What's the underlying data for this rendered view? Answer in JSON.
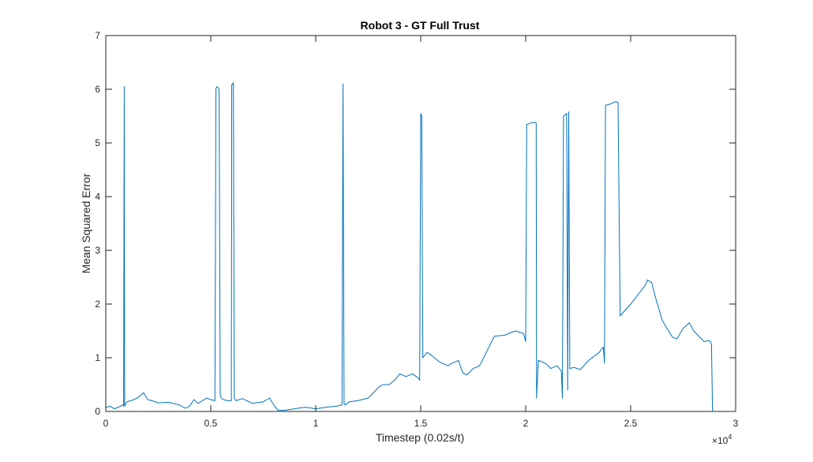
{
  "chart_data": {
    "type": "line",
    "title": "Robot 3 - GT Full Trust",
    "xlabel": "Timestep (0.02s/t)",
    "ylabel": "Mean Squared Error",
    "x_exponent_label": "×10",
    "x_exponent_power": "4",
    "xlim": [
      0,
      3
    ],
    "ylim": [
      0,
      7
    ],
    "xticks": [
      0,
      0.5,
      1,
      1.5,
      2,
      2.5,
      3
    ],
    "xtick_labels": [
      "0",
      "0.5",
      "1",
      "1.5",
      "2",
      "2.5",
      "3"
    ],
    "yticks": [
      0,
      1,
      2,
      3,
      4,
      5,
      6,
      7
    ],
    "ytick_labels": [
      "0",
      "1",
      "2",
      "3",
      "4",
      "5",
      "6",
      "7"
    ],
    "grid": false,
    "line_color": "#0072BD",
    "series": [
      {
        "x": [
          0,
          0.02,
          0.04,
          0.06,
          0.08,
          0.085,
          0.088,
          0.09,
          0.093,
          0.095,
          0.1,
          0.12,
          0.15,
          0.18,
          0.2,
          0.22,
          0.25,
          0.3,
          0.35,
          0.38,
          0.4,
          0.42,
          0.44,
          0.46,
          0.48,
          0.5,
          0.52,
          0.525,
          0.53,
          0.54,
          0.545,
          0.55,
          0.56,
          0.58,
          0.598,
          0.6,
          0.608,
          0.612,
          0.62,
          0.65,
          0.7,
          0.75,
          0.78,
          0.8,
          0.82,
          0.85,
          0.9,
          0.95,
          1.0,
          1.05,
          1.1,
          1.125,
          1.13,
          1.135,
          1.14,
          1.16,
          1.2,
          1.25,
          1.3,
          1.32,
          1.35,
          1.38,
          1.4,
          1.43,
          1.46,
          1.49,
          1.495,
          1.5,
          1.505,
          1.51,
          1.53,
          1.55,
          1.58,
          1.6,
          1.63,
          1.65,
          1.68,
          1.7,
          1.72,
          1.75,
          1.78,
          1.8,
          1.85,
          1.9,
          1.95,
          1.99,
          2.0,
          2.005,
          2.01,
          2.03,
          2.05,
          2.052,
          2.06,
          2.08,
          2.1,
          2.12,
          2.15,
          2.17,
          2.175,
          2.18,
          2.195,
          2.2,
          2.205,
          2.21,
          2.23,
          2.26,
          2.3,
          2.35,
          2.37,
          2.375,
          2.38,
          2.4,
          2.43,
          2.44,
          2.45,
          2.5,
          2.55,
          2.57,
          2.58,
          2.6,
          2.62,
          2.65,
          2.68,
          2.7,
          2.72,
          2.75,
          2.78,
          2.8,
          2.82,
          2.85,
          2.87,
          2.88,
          2.885,
          2.89
        ],
        "y": [
          0.07,
          0.1,
          0.05,
          0.08,
          0.12,
          0.1,
          6.05,
          0.1,
          0.12,
          0.15,
          0.18,
          0.2,
          0.25,
          0.35,
          0.22,
          0.2,
          0.16,
          0.17,
          0.12,
          0.06,
          0.1,
          0.22,
          0.15,
          0.2,
          0.25,
          0.22,
          0.2,
          6.02,
          6.05,
          6.0,
          0.3,
          0.25,
          0.22,
          0.2,
          0.2,
          6.08,
          6.12,
          0.25,
          0.2,
          0.24,
          0.15,
          0.18,
          0.25,
          0.12,
          0.02,
          0.02,
          0.05,
          0.08,
          0.05,
          0.08,
          0.1,
          0.12,
          6.1,
          0.15,
          0.12,
          0.18,
          0.2,
          0.25,
          0.45,
          0.5,
          0.5,
          0.6,
          0.7,
          0.65,
          0.7,
          0.62,
          0.58,
          5.55,
          5.5,
          1.0,
          1.1,
          1.05,
          0.95,
          0.9,
          0.85,
          0.9,
          0.95,
          0.72,
          0.68,
          0.8,
          0.85,
          1.0,
          1.4,
          1.42,
          1.5,
          1.45,
          1.3,
          5.35,
          5.35,
          5.38,
          5.38,
          0.25,
          0.95,
          0.92,
          0.88,
          0.8,
          0.85,
          0.75,
          0.25,
          5.5,
          5.55,
          0.4,
          5.58,
          0.8,
          0.82,
          0.78,
          0.95,
          1.1,
          1.2,
          0.9,
          5.7,
          5.72,
          5.77,
          5.75,
          1.78,
          2.0,
          2.25,
          2.35,
          2.45,
          2.4,
          2.1,
          1.7,
          1.5,
          1.38,
          1.35,
          1.55,
          1.65,
          1.5,
          1.42,
          1.3,
          1.32,
          1.3,
          1.25,
          0.0
        ]
      }
    ]
  }
}
